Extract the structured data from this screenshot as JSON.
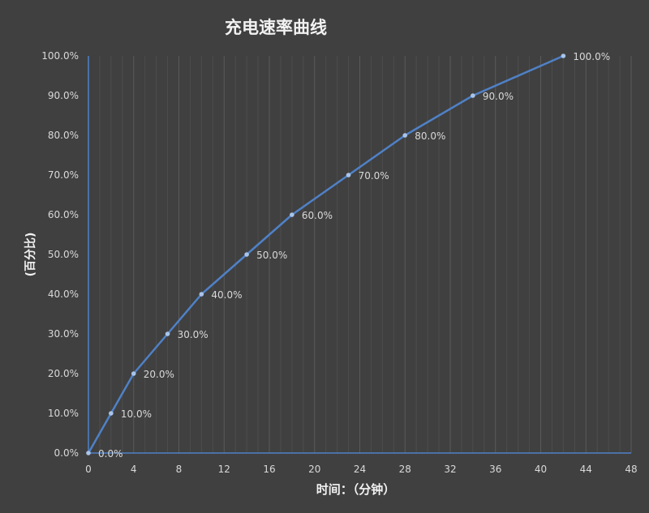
{
  "chart_data": {
    "type": "line",
    "title": "充电速率曲线",
    "xlabel": "时间：（分钟）",
    "ylabel": "(百分比)",
    "x": [
      0,
      2,
      4,
      7,
      10,
      14,
      18,
      23,
      28,
      34,
      42
    ],
    "values": [
      0,
      10,
      20,
      30,
      40,
      50,
      60,
      70,
      80,
      90,
      100
    ],
    "data_labels": [
      "0.0%",
      "10.0%",
      "20.0%",
      "30.0%",
      "40.0%",
      "50.0%",
      "60.0%",
      "70.0%",
      "80.0%",
      "90.0%",
      "100.0%"
    ],
    "xlim": [
      0,
      48
    ],
    "ylim": [
      0,
      100
    ],
    "x_ticks": [
      0,
      4,
      8,
      12,
      16,
      20,
      24,
      28,
      32,
      36,
      40,
      44,
      48
    ],
    "y_ticks": [
      "0.0%",
      "10.0%",
      "20.0%",
      "30.0%",
      "40.0%",
      "50.0%",
      "60.0%",
      "70.0%",
      "80.0%",
      "90.0%",
      "100.0%"
    ],
    "grid": "vertical minor gridlines every 1 minute",
    "legend": "none",
    "colors": {
      "line": "#4f81c7",
      "background": "#404040",
      "text": "#d9d9d9",
      "marker": "#a9c4ea"
    }
  }
}
